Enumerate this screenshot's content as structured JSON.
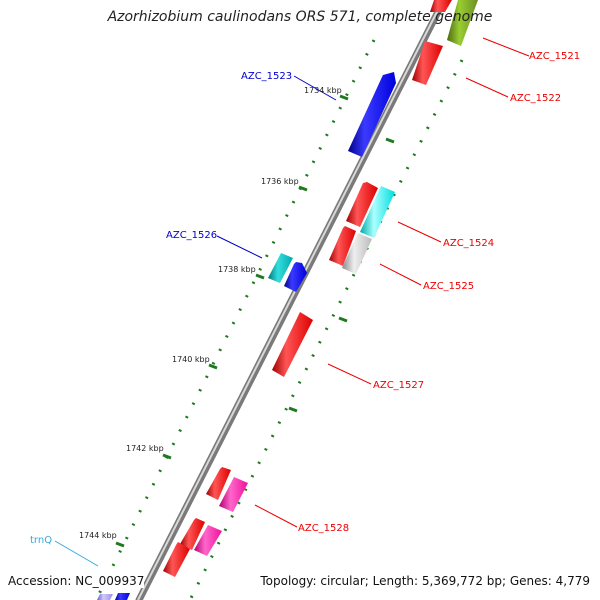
{
  "title": "Azorhizobium caulinodans ORS 571, complete genome",
  "accession_text": "Accession: NC_009937",
  "summary_text": "Topology: circular; Length: 5,369,772 bp; Genes: 4,779",
  "backbone_color": "#7a7a7a",
  "tick_color": "#1f7a1f",
  "kbp_labels": [
    "1734 kbp",
    "1736 kbp",
    "1738 kbp",
    "1740 kbp",
    "1742 kbp",
    "1744 kbp"
  ],
  "genes": [
    {
      "name": "AZC_1521",
      "side": "right",
      "label_color": "#ee0000"
    },
    {
      "name": "AZC_1522",
      "side": "right",
      "label_color": "#ee0000"
    },
    {
      "name": "AZC_1523",
      "side": "left",
      "label_color": "#0000cc"
    },
    {
      "name": "AZC_1524",
      "side": "right",
      "label_color": "#ee0000"
    },
    {
      "name": "AZC_1525",
      "side": "right",
      "label_color": "#ee0000"
    },
    {
      "name": "AZC_1526",
      "side": "left",
      "label_color": "#0000cc"
    },
    {
      "name": "AZC_1527",
      "side": "right",
      "label_color": "#ee0000"
    },
    {
      "name": "AZC_1528",
      "side": "right",
      "label_color": "#ee0000"
    },
    {
      "name": "trnQ",
      "side": "left",
      "label_color": "#33aadd"
    }
  ],
  "feature_colors": {
    "red": "#ee0000",
    "blue": "#0000ee",
    "cyan": "#00dddd",
    "teal": "#00aaaa",
    "gray": "#b8b8b8",
    "magenta": "#ee1199",
    "olive": "#6b8e23",
    "lavender": "#9f8fe0"
  }
}
